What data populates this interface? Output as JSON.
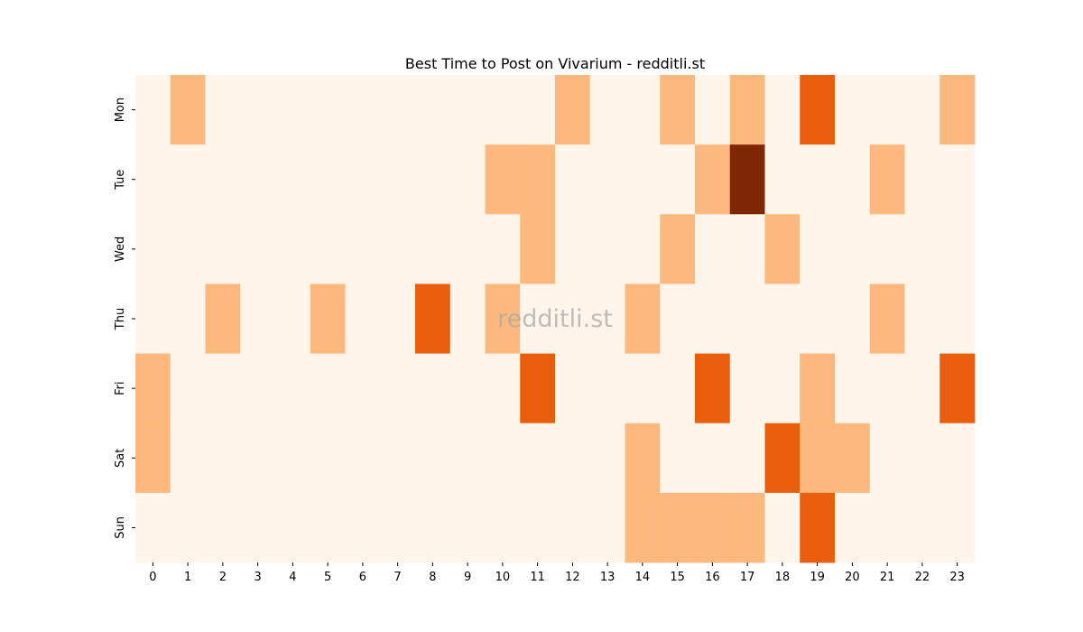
{
  "chart_data": {
    "type": "heatmap",
    "title": "Best Time to Post on Vivarium - redditli.st",
    "watermark": "redditli.st",
    "x_categories": [
      "0",
      "1",
      "2",
      "3",
      "4",
      "5",
      "6",
      "7",
      "8",
      "9",
      "10",
      "11",
      "12",
      "13",
      "14",
      "15",
      "16",
      "17",
      "18",
      "19",
      "20",
      "21",
      "22",
      "23"
    ],
    "y_categories": [
      "Mon",
      "Tue",
      "Wed",
      "Thu",
      "Fri",
      "Sat",
      "Sun"
    ],
    "values": [
      [
        0,
        1,
        0,
        0,
        0,
        0,
        0,
        0,
        0,
        0,
        0,
        0,
        1,
        0,
        0,
        1,
        0,
        1,
        0,
        2,
        0,
        0,
        0,
        1
      ],
      [
        0,
        0,
        0,
        0,
        0,
        0,
        0,
        0,
        0,
        0,
        1,
        1,
        0,
        0,
        0,
        0,
        1,
        3,
        0,
        0,
        0,
        1,
        0,
        0
      ],
      [
        0,
        0,
        0,
        0,
        0,
        0,
        0,
        0,
        0,
        0,
        0,
        1,
        0,
        0,
        0,
        1,
        0,
        0,
        1,
        0,
        0,
        0,
        0,
        0
      ],
      [
        0,
        0,
        1,
        0,
        0,
        1,
        0,
        0,
        2,
        0,
        1,
        0,
        0,
        0,
        1,
        0,
        0,
        0,
        0,
        0,
        0,
        1,
        0,
        0
      ],
      [
        1,
        0,
        0,
        0,
        0,
        0,
        0,
        0,
        0,
        0,
        0,
        2,
        0,
        0,
        0,
        0,
        2,
        0,
        0,
        1,
        0,
        0,
        0,
        2
      ],
      [
        1,
        0,
        0,
        0,
        0,
        0,
        0,
        0,
        0,
        0,
        0,
        0,
        0,
        0,
        1,
        0,
        0,
        0,
        2,
        1,
        1,
        0,
        0,
        0
      ],
      [
        0,
        0,
        0,
        0,
        0,
        0,
        0,
        0,
        0,
        0,
        0,
        0,
        0,
        0,
        1,
        1,
        1,
        1,
        0,
        2,
        0,
        0,
        0,
        0
      ]
    ],
    "colormap": [
      "#fff5eb",
      "#fdb97d",
      "#e95e0d",
      "#7f2704"
    ],
    "colorbar": false,
    "grid": false
  }
}
